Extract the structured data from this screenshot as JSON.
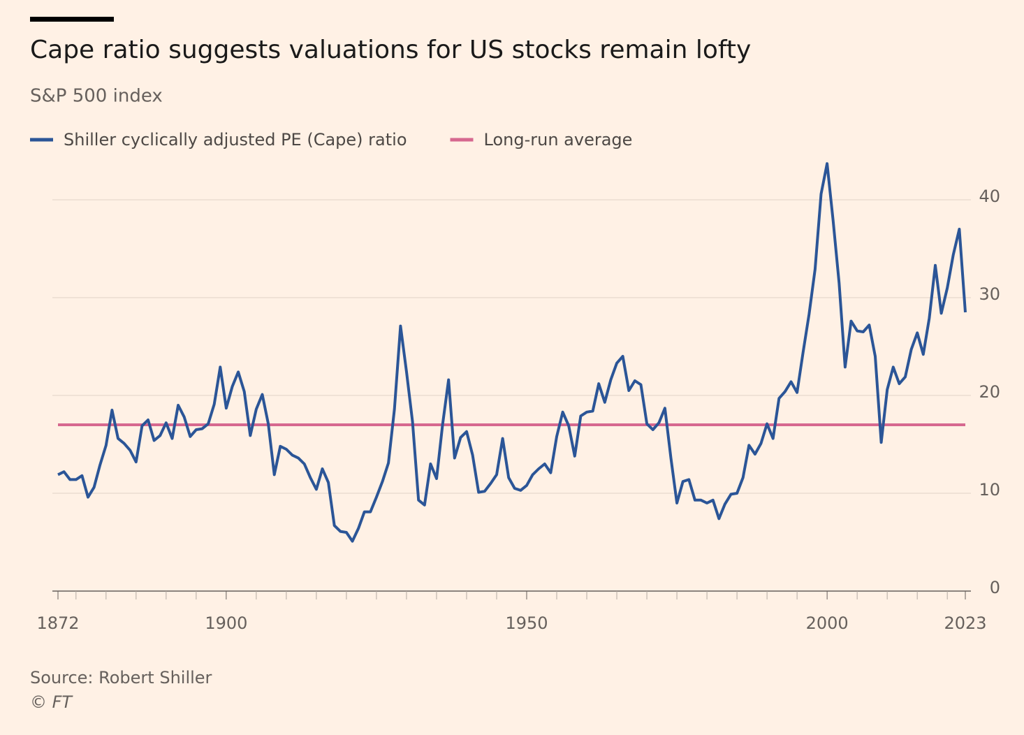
{
  "chart_data": {
    "type": "line",
    "title": "Cape ratio suggests valuations for US stocks remain lofty",
    "subtitle": "S&P 500 index",
    "source": "Source: Robert Shiller",
    "credit": "© FT",
    "x": [
      1872,
      1873,
      1874,
      1875,
      1876,
      1877,
      1878,
      1879,
      1880,
      1881,
      1882,
      1883,
      1884,
      1885,
      1886,
      1887,
      1888,
      1889,
      1890,
      1891,
      1892,
      1893,
      1894,
      1895,
      1896,
      1897,
      1898,
      1899,
      1900,
      1901,
      1902,
      1903,
      1904,
      1905,
      1906,
      1907,
      1908,
      1909,
      1910,
      1911,
      1912,
      1913,
      1914,
      1915,
      1916,
      1917,
      1918,
      1919,
      1920,
      1921,
      1922,
      1923,
      1924,
      1925,
      1926,
      1927,
      1928,
      1929,
      1930,
      1931,
      1932,
      1933,
      1934,
      1935,
      1936,
      1937,
      1938,
      1939,
      1940,
      1941,
      1942,
      1943,
      1944,
      1945,
      1946,
      1947,
      1948,
      1949,
      1950,
      1951,
      1952,
      1953,
      1954,
      1955,
      1956,
      1957,
      1958,
      1959,
      1960,
      1961,
      1962,
      1963,
      1964,
      1965,
      1966,
      1967,
      1968,
      1969,
      1970,
      1971,
      1972,
      1973,
      1974,
      1975,
      1976,
      1977,
      1978,
      1979,
      1980,
      1981,
      1982,
      1983,
      1984,
      1985,
      1986,
      1987,
      1988,
      1989,
      1990,
      1991,
      1992,
      1993,
      1994,
      1995,
      1996,
      1997,
      1998,
      1999,
      2000,
      2001,
      2002,
      2003,
      2004,
      2005,
      2006,
      2007,
      2008,
      2009,
      2010,
      2011,
      2012,
      2013,
      2014,
      2015,
      2016,
      2017,
      2018,
      2019,
      2020,
      2021,
      2022,
      2023
    ],
    "series": [
      {
        "name": "Shiller cyclically adjusted PE (Cape) ratio",
        "color": "#2b5597",
        "values": [
          11.9,
          12.2,
          11.4,
          11.4,
          11.8,
          9.6,
          10.6,
          12.9,
          14.9,
          18.5,
          15.6,
          15.1,
          14.4,
          13.2,
          16.9,
          17.5,
          15.4,
          15.9,
          17.2,
          15.6,
          19.0,
          17.8,
          15.8,
          16.5,
          16.6,
          17.1,
          19.1,
          22.9,
          18.7,
          20.9,
          22.4,
          20.4,
          15.9,
          18.6,
          20.1,
          17.1,
          11.9,
          14.8,
          14.5,
          13.9,
          13.6,
          13.0,
          11.6,
          10.4,
          12.5,
          11.1,
          6.7,
          6.1,
          6.0,
          5.1,
          6.4,
          8.1,
          8.1,
          9.6,
          11.2,
          13.1,
          18.6,
          27.1,
          22.4,
          17.3,
          9.3,
          8.8,
          13.0,
          11.5,
          17.0,
          21.6,
          13.6,
          15.7,
          16.3,
          13.9,
          10.1,
          10.2,
          11.0,
          11.9,
          15.6,
          11.6,
          10.5,
          10.3,
          10.8,
          11.9,
          12.5,
          13.0,
          12.1,
          15.8,
          18.3,
          16.9,
          13.8,
          17.9,
          18.3,
          18.4,
          21.2,
          19.3,
          21.6,
          23.3,
          24.0,
          20.5,
          21.5,
          21.1,
          17.1,
          16.5,
          17.2,
          18.7,
          13.6,
          9.0,
          11.2,
          11.4,
          9.3,
          9.3,
          9.0,
          9.3,
          7.4,
          8.9,
          9.9,
          10.0,
          11.6,
          14.9,
          14.0,
          15.1,
          17.1,
          15.6,
          19.7,
          20.4,
          21.4,
          20.3,
          24.4,
          28.3,
          32.9,
          40.6,
          43.7,
          37.9,
          31.5,
          22.9,
          27.6,
          26.6,
          26.5,
          27.2,
          24.0,
          15.2,
          20.6,
          22.9,
          21.2,
          21.9,
          24.7,
          26.4,
          24.2,
          27.9,
          33.3,
          28.4,
          31.0,
          34.4,
          37.0,
          28.5
        ]
      },
      {
        "name": "Long-run average",
        "color": "#d6688f",
        "x": [
          1872,
          2023
        ],
        "values": [
          17,
          17
        ]
      }
    ],
    "xlim": [
      1872,
      2023
    ],
    "xticks": [
      1872,
      1900,
      1950,
      2000,
      2023
    ],
    "xticks_minor": [
      1875,
      1880,
      1885,
      1890,
      1895,
      1905,
      1910,
      1915,
      1920,
      1925,
      1930,
      1935,
      1940,
      1945,
      1955,
      1960,
      1965,
      1970,
      1975,
      1980,
      1985,
      1990,
      1995,
      2005,
      2010,
      2015,
      2020
    ],
    "ylim": [
      0,
      44
    ],
    "yticks": [
      0,
      10,
      20,
      30,
      40
    ],
    "grid": true
  }
}
